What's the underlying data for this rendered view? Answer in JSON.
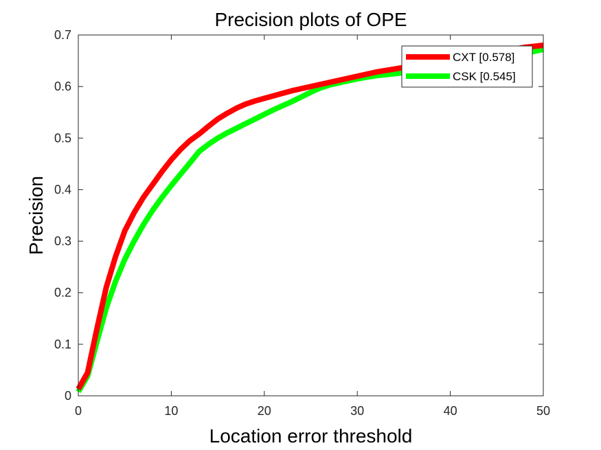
{
  "chart_data": {
    "type": "line",
    "title": "Precision plots of OPE",
    "xlabel": "Location error threshold",
    "ylabel": "Precision",
    "xlim": [
      0,
      50
    ],
    "ylim": [
      0,
      0.7
    ],
    "xticks": [
      0,
      10,
      20,
      30,
      40,
      50
    ],
    "yticks": [
      0,
      0.1,
      0.2,
      0.3,
      0.4,
      0.5,
      0.6,
      0.7
    ],
    "xtick_labels": [
      "0",
      "10",
      "20",
      "30",
      "40",
      "50"
    ],
    "ytick_labels": [
      "0",
      "0.1",
      "0.2",
      "0.3",
      "0.4",
      "0.5",
      "0.6",
      "0.7"
    ],
    "grid": false,
    "legend_position": "top-right",
    "series": [
      {
        "name": "CXT [0.578]",
        "color": "#ff0000",
        "x": [
          0,
          1,
          2,
          3,
          4,
          5,
          6,
          7,
          8,
          9,
          10,
          11,
          12,
          13,
          14,
          15,
          16,
          17,
          18,
          19,
          20,
          21,
          22,
          23,
          24,
          25,
          26,
          27,
          28,
          29,
          30,
          31,
          32,
          33,
          34,
          35,
          36,
          37,
          38,
          39,
          40,
          41,
          42,
          43,
          44,
          45,
          46,
          47,
          48,
          49,
          50
        ],
        "y": [
          0.013,
          0.045,
          0.13,
          0.21,
          0.27,
          0.32,
          0.355,
          0.385,
          0.41,
          0.435,
          0.458,
          0.478,
          0.495,
          0.508,
          0.523,
          0.537,
          0.548,
          0.558,
          0.566,
          0.572,
          0.577,
          0.582,
          0.587,
          0.592,
          0.596,
          0.6,
          0.604,
          0.608,
          0.612,
          0.616,
          0.62,
          0.624,
          0.628,
          0.631,
          0.634,
          0.637,
          0.64,
          0.643,
          0.646,
          0.649,
          0.652,
          0.655,
          0.658,
          0.661,
          0.664,
          0.667,
          0.67,
          0.673,
          0.676,
          0.678,
          0.68
        ]
      },
      {
        "name": "CSK [0.545]",
        "color": "#00ff00",
        "x": [
          0,
          1,
          2,
          3,
          4,
          5,
          6,
          7,
          8,
          9,
          10,
          11,
          12,
          13,
          14,
          15,
          16,
          17,
          18,
          19,
          20,
          21,
          22,
          23,
          24,
          25,
          26,
          27,
          28,
          29,
          30,
          31,
          32,
          33,
          34,
          35,
          36,
          37,
          38,
          39,
          40,
          41,
          42,
          43,
          44,
          45,
          46,
          47,
          48,
          49,
          50
        ],
        "y": [
          0.008,
          0.038,
          0.105,
          0.17,
          0.222,
          0.265,
          0.3,
          0.332,
          0.36,
          0.385,
          0.408,
          0.43,
          0.452,
          0.474,
          0.488,
          0.5,
          0.51,
          0.519,
          0.528,
          0.537,
          0.546,
          0.555,
          0.563,
          0.571,
          0.58,
          0.589,
          0.597,
          0.603,
          0.607,
          0.611,
          0.615,
          0.618,
          0.621,
          0.623,
          0.625,
          0.627,
          0.629,
          0.632,
          0.635,
          0.638,
          0.641,
          0.644,
          0.647,
          0.65,
          0.653,
          0.656,
          0.659,
          0.662,
          0.665,
          0.668,
          0.672
        ]
      }
    ]
  }
}
